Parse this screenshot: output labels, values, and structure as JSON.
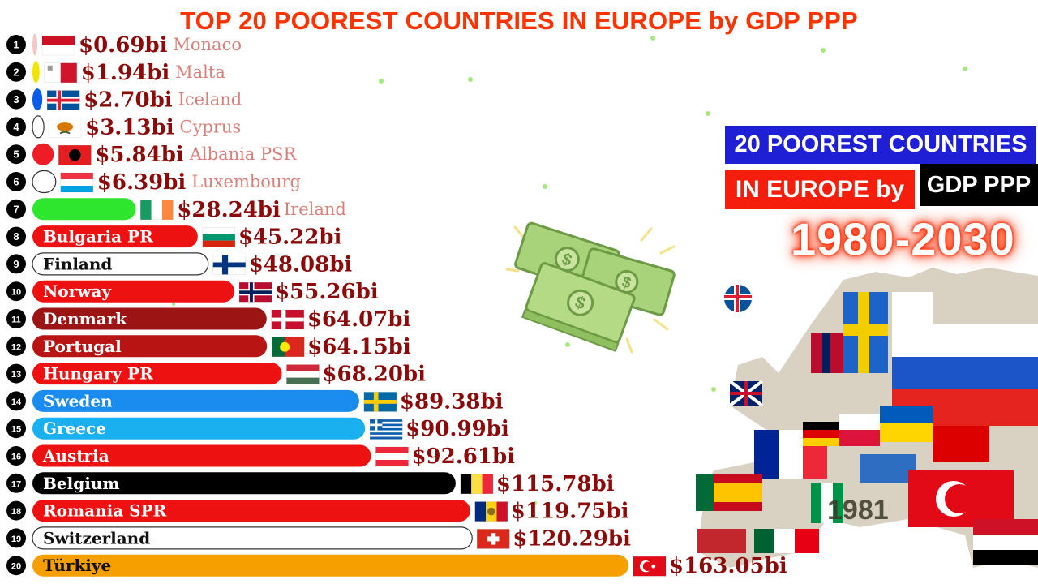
{
  "header": {
    "title": "TOP 20 POOREST COUNTRIES IN EUROPE by GDP PPP"
  },
  "badges": {
    "line1": "20 POOREST COUNTRIES",
    "line2": "IN EUROPE by",
    "line3": "GDP PPP",
    "years": "1980-2030"
  },
  "current_year": "1981",
  "colors": {
    "title": "#ff3300",
    "value_text": "#8b0a0a",
    "faded_label": "#d9807a"
  },
  "icons": [
    "money-stack-icon",
    "europe-flag-map-icon"
  ],
  "chart_data": {
    "type": "bar",
    "orientation": "horizontal",
    "title": "TOP 20 POOREST COUNTRIES IN EUROPE by GDP PPP",
    "unit": "bi",
    "rows": [
      {
        "rank": "1",
        "country": "Monaco",
        "value": 0.69,
        "label": "$0.69bi",
        "color": "#f3c8c8",
        "flag": "monaco"
      },
      {
        "rank": "2",
        "country": "Malta",
        "value": 1.94,
        "label": "$1.94bi",
        "color": "#f1e400",
        "flag": "malta"
      },
      {
        "rank": "3",
        "country": "Iceland",
        "value": 2.7,
        "label": "$2.70bi",
        "color": "#0a5ce8",
        "flag": "iceland"
      },
      {
        "rank": "4",
        "country": "Cyprus",
        "value": 3.13,
        "label": "$3.13bi",
        "color": "#ffffff",
        "flag": "cyprus"
      },
      {
        "rank": "5",
        "country": "Albania PSR",
        "value": 5.84,
        "label": "$5.84bi",
        "color": "#ee1c25",
        "flag": "albania"
      },
      {
        "rank": "6",
        "country": "Luxembourg",
        "value": 6.39,
        "label": "$6.39bi",
        "color": "#ffffff",
        "flag": "luxembourg"
      },
      {
        "rank": "7",
        "country": "Ireland",
        "value": 28.24,
        "label": "$28.24bi",
        "color": "#2ee62e",
        "flag": "ireland"
      },
      {
        "rank": "8",
        "country": "Bulgaria PR",
        "value": 45.22,
        "label": "$45.22bi",
        "color": "#ee1111",
        "flag": "bulgaria"
      },
      {
        "rank": "9",
        "country": "Finland",
        "value": 48.08,
        "label": "$48.08bi",
        "color": "#ffffff",
        "flag": "finland"
      },
      {
        "rank": "10",
        "country": "Norway",
        "value": 55.26,
        "label": "$55.26bi",
        "color": "#ee1111",
        "flag": "norway"
      },
      {
        "rank": "11",
        "country": "Denmark",
        "value": 64.07,
        "label": "$64.07bi",
        "color": "#9c1414",
        "flag": "denmark"
      },
      {
        "rank": "12",
        "country": "Portugal",
        "value": 64.15,
        "label": "$64.15bi",
        "color": "#b81414",
        "flag": "portugal"
      },
      {
        "rank": "13",
        "country": "Hungary PR",
        "value": 68.2,
        "label": "$68.20bi",
        "color": "#ee1111",
        "flag": "hungary"
      },
      {
        "rank": "14",
        "country": "Sweden",
        "value": 89.38,
        "label": "$89.38bi",
        "color": "#1a8cf0",
        "flag": "sweden"
      },
      {
        "rank": "15",
        "country": "Greece",
        "value": 90.99,
        "label": "$90.99bi",
        "color": "#1ab0f0",
        "flag": "greece"
      },
      {
        "rank": "16",
        "country": "Austria",
        "value": 92.61,
        "label": "$92.61bi",
        "color": "#ee1111",
        "flag": "austria"
      },
      {
        "rank": "17",
        "country": "Belgium",
        "value": 115.78,
        "label": "$115.78bi",
        "color": "#000000",
        "flag": "belgium"
      },
      {
        "rank": "18",
        "country": "Romania SPR",
        "value": 119.75,
        "label": "$119.75bi",
        "color": "#ee1111",
        "flag": "romania"
      },
      {
        "rank": "19",
        "country": "Switzerland",
        "value": 120.29,
        "label": "$120.29bi",
        "color": "#ffffff",
        "flag": "switzerland"
      },
      {
        "rank": "20",
        "country": "Türkiye",
        "value": 163.05,
        "label": "$163.05bi",
        "color": "#f5a000",
        "flag": "turkey"
      }
    ]
  }
}
